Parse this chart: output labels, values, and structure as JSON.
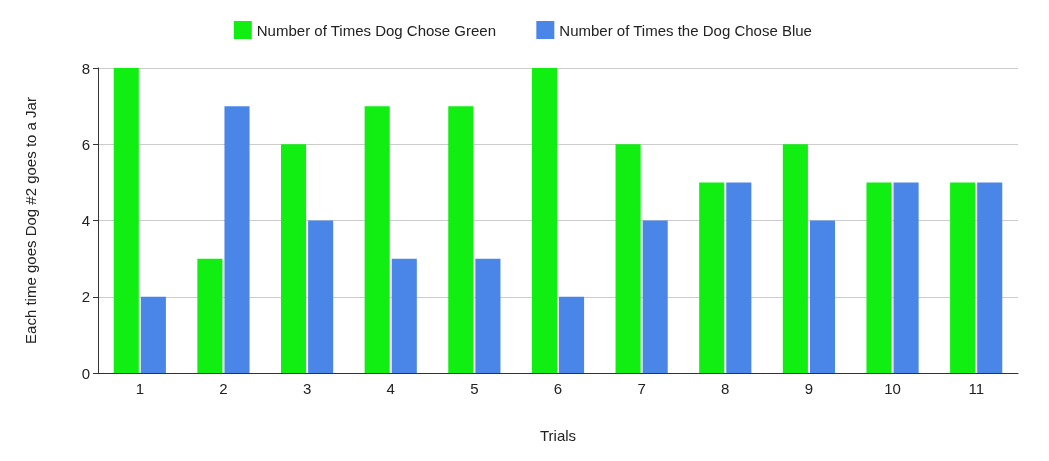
{
  "chart_data": {
    "type": "bar",
    "xlabel": "Trials",
    "ylabel": "Each time goes Dog #2 goes to a Jar",
    "categories": [
      "1",
      "2",
      "3",
      "4",
      "5",
      "6",
      "7",
      "8",
      "9",
      "10",
      "11"
    ],
    "series": [
      {
        "name": "Number of Times Dog Chose Green",
        "color": "#11ee11",
        "values": [
          8,
          3,
          6,
          7,
          7,
          8,
          6,
          5,
          6,
          5,
          5
        ]
      },
      {
        "name": "Number of Times the Dog Chose Blue",
        "color": "#4a86e8",
        "values": [
          2,
          7,
          4,
          3,
          3,
          2,
          4,
          5,
          4,
          5,
          5
        ]
      }
    ],
    "ylim": [
      0,
      8
    ],
    "yticks": [
      0,
      2,
      4,
      6,
      8
    ],
    "grid": "y",
    "legend": "top"
  }
}
